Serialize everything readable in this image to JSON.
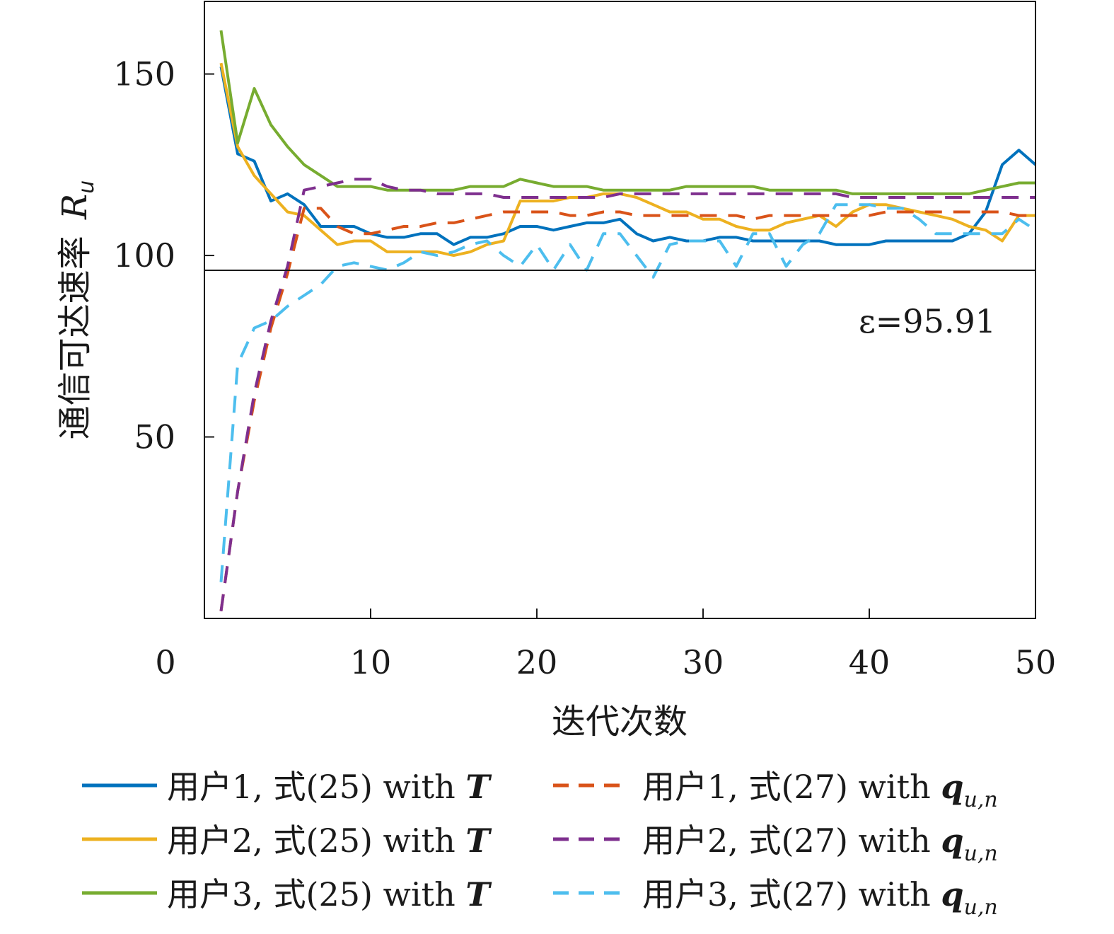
{
  "chart_data": {
    "type": "line",
    "xlabel": "迭代次数",
    "ylabel": "通信可达速率",
    "ylabel_symbol": "R",
    "ylabel_subscript": "u",
    "xlim": [
      0,
      50
    ],
    "ylim": [
      0,
      170
    ],
    "xticks": [
      0,
      10,
      20,
      30,
      40,
      50
    ],
    "yticks": [
      50,
      100,
      150
    ],
    "grid": false,
    "legend_position": "bottom",
    "threshold": {
      "value": 95.91,
      "label": "ε=95.91"
    },
    "series": [
      {
        "name": "用户1, 式(25) with T",
        "legend_prefix": "用户1, 式(25) with ",
        "legend_symbol": "T",
        "legend_subscript": "",
        "color": "#0072BD",
        "dash": "solid",
        "x": [
          1,
          2,
          3,
          4,
          5,
          6,
          7,
          8,
          9,
          10,
          11,
          12,
          13,
          14,
          15,
          16,
          17,
          18,
          19,
          20,
          21,
          22,
          23,
          24,
          25,
          26,
          27,
          28,
          29,
          30,
          31,
          32,
          33,
          34,
          35,
          36,
          37,
          38,
          39,
          40,
          41,
          42,
          43,
          44,
          45,
          46,
          47,
          48,
          49,
          50
        ],
        "y": [
          152,
          128,
          126,
          115,
          117,
          114,
          108,
          108,
          108,
          106,
          105,
          105,
          106,
          106,
          103,
          105,
          105,
          106,
          108,
          108,
          107,
          108,
          109,
          109,
          110,
          106,
          104,
          105,
          104,
          104,
          105,
          105,
          104,
          104,
          104,
          104,
          104,
          103,
          103,
          103,
          104,
          104,
          104,
          104,
          104,
          106,
          112,
          125,
          129,
          125
        ]
      },
      {
        "name": "用户2, 式(25) with T",
        "legend_prefix": "用户2, 式(25) with ",
        "legend_symbol": "T",
        "legend_subscript": "",
        "color": "#EDB120",
        "dash": "solid",
        "x": [
          1,
          2,
          3,
          4,
          5,
          6,
          7,
          8,
          9,
          10,
          11,
          12,
          13,
          14,
          15,
          16,
          17,
          18,
          19,
          20,
          21,
          22,
          23,
          24,
          25,
          26,
          27,
          28,
          29,
          30,
          31,
          32,
          33,
          34,
          35,
          36,
          37,
          38,
          39,
          40,
          41,
          42,
          43,
          44,
          45,
          46,
          47,
          48,
          49,
          50
        ],
        "y": [
          153,
          130,
          122,
          117,
          112,
          111,
          107,
          103,
          104,
          104,
          101,
          101,
          101,
          101,
          100,
          101,
          103,
          104,
          115,
          115,
          115,
          116,
          116,
          117,
          117,
          116,
          114,
          112,
          112,
          110,
          110,
          108,
          107,
          107,
          109,
          110,
          111,
          108,
          112,
          114,
          114,
          113,
          112,
          111,
          110,
          108,
          107,
          104,
          111,
          111
        ]
      },
      {
        "name": "用户3, 式(25) with T",
        "legend_prefix": "用户3, 式(25) with ",
        "legend_symbol": "T",
        "legend_subscript": "",
        "color": "#77AC30",
        "dash": "solid",
        "x": [
          1,
          2,
          3,
          4,
          5,
          6,
          7,
          8,
          9,
          10,
          11,
          12,
          13,
          14,
          15,
          16,
          17,
          18,
          19,
          20,
          21,
          22,
          23,
          24,
          25,
          26,
          27,
          28,
          29,
          30,
          31,
          32,
          33,
          34,
          35,
          36,
          37,
          38,
          39,
          40,
          41,
          42,
          43,
          44,
          45,
          46,
          47,
          48,
          49,
          50
        ],
        "y": [
          162,
          131,
          146,
          136,
          130,
          125,
          122,
          119,
          119,
          119,
          118,
          118,
          118,
          118,
          118,
          119,
          119,
          119,
          121,
          120,
          119,
          119,
          119,
          118,
          118,
          118,
          118,
          118,
          119,
          119,
          119,
          119,
          119,
          118,
          118,
          118,
          118,
          118,
          117,
          117,
          117,
          117,
          117,
          117,
          117,
          117,
          118,
          119,
          120,
          120
        ]
      },
      {
        "name": "用户1, 式(27) with q_{u,n}",
        "legend_prefix": "用户1, 式(27) with ",
        "legend_symbol": "q",
        "legend_subscript": "u,n",
        "color": "#D95319",
        "dash": "dashed",
        "x": [
          1,
          2,
          3,
          4,
          5,
          6,
          7,
          8,
          9,
          10,
          11,
          12,
          13,
          14,
          15,
          16,
          17,
          18,
          19,
          20,
          21,
          22,
          23,
          24,
          25,
          26,
          27,
          28,
          29,
          30,
          31,
          32,
          33,
          34,
          35,
          36,
          37,
          38,
          39,
          40,
          41,
          42,
          43,
          44,
          45,
          46,
          47,
          48,
          49,
          50
        ],
        "y": [
          2,
          35,
          60,
          80,
          95,
          113,
          113,
          108,
          106,
          106,
          107,
          108,
          108,
          109,
          109,
          110,
          111,
          112,
          112,
          112,
          112,
          111,
          111,
          112,
          112,
          111,
          111,
          111,
          111,
          111,
          111,
          111,
          110,
          111,
          111,
          111,
          111,
          111,
          111,
          111,
          112,
          112,
          112,
          112,
          112,
          112,
          112,
          112,
          111,
          111
        ]
      },
      {
        "name": "用户2, 式(27) with q_{u,n}",
        "legend_prefix": "用户2, 式(27) with ",
        "legend_symbol": "q",
        "legend_subscript": "u,n",
        "color": "#7E2F8E",
        "dash": "dashed",
        "x": [
          1,
          2,
          3,
          4,
          5,
          6,
          7,
          8,
          9,
          10,
          11,
          12,
          13,
          14,
          15,
          16,
          17,
          18,
          19,
          20,
          21,
          22,
          23,
          24,
          25,
          26,
          27,
          28,
          29,
          30,
          31,
          32,
          33,
          34,
          35,
          36,
          37,
          38,
          39,
          40,
          41,
          42,
          43,
          44,
          45,
          46,
          47,
          48,
          49,
          50
        ],
        "y": [
          2,
          35,
          62,
          82,
          97,
          118,
          119,
          120,
          121,
          121,
          119,
          118,
          118,
          117,
          117,
          117,
          117,
          116,
          116,
          116,
          116,
          116,
          116,
          116,
          117,
          117,
          117,
          117,
          117,
          117,
          117,
          117,
          117,
          117,
          117,
          117,
          117,
          117,
          116,
          116,
          116,
          116,
          116,
          116,
          116,
          116,
          116,
          116,
          116,
          116
        ]
      },
      {
        "name": "用户3, 式(27) with q_{u,n}",
        "legend_prefix": "用户3, 式(27) with ",
        "legend_symbol": "q",
        "legend_subscript": "u,n",
        "color": "#4DBEEE",
        "dash": "dashed",
        "x": [
          1,
          2,
          3,
          4,
          5,
          6,
          7,
          8,
          9,
          10,
          11,
          12,
          13,
          14,
          15,
          16,
          17,
          18,
          19,
          20,
          21,
          22,
          23,
          24,
          25,
          26,
          27,
          28,
          29,
          30,
          31,
          32,
          33,
          34,
          35,
          36,
          37,
          38,
          39,
          40,
          41,
          42,
          43,
          44,
          45,
          46,
          47,
          48,
          49,
          50
        ],
        "y": [
          10,
          70,
          80,
          82,
          86,
          89,
          92,
          97,
          98,
          97,
          96,
          98,
          101,
          100,
          101,
          103,
          104,
          100,
          97,
          103,
          96,
          103,
          96,
          106,
          106,
          100,
          94,
          103,
          104,
          104,
          104,
          97,
          106,
          106,
          97,
          103,
          106,
          114,
          114,
          114,
          113,
          113,
          110,
          106,
          106,
          106,
          106,
          106,
          110,
          107
        ]
      }
    ]
  }
}
